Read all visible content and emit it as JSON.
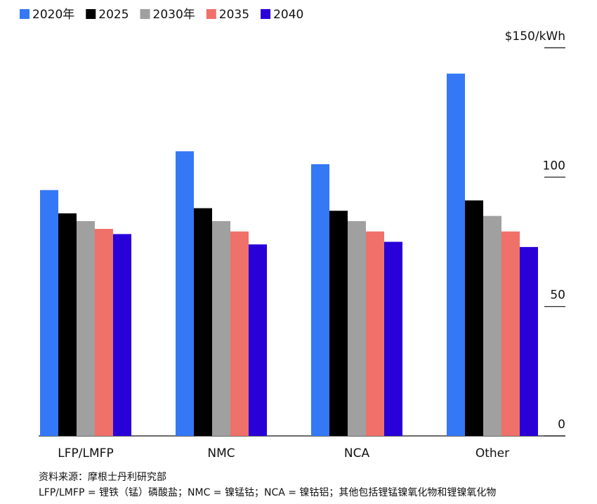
{
  "chart_data": {
    "type": "bar",
    "categories": [
      "LFP/LMFP",
      "NMC",
      "NCA",
      "Other"
    ],
    "series": [
      {
        "name": "2020年",
        "color": "#3478f6",
        "values": [
          95,
          110,
          105,
          140
        ]
      },
      {
        "name": "2025",
        "color": "#000000",
        "values": [
          86,
          88,
          87,
          91
        ]
      },
      {
        "name": "2030年",
        "color": "#a0a0a0",
        "values": [
          83,
          83,
          83,
          85
        ]
      },
      {
        "name": "2035",
        "color": "#f0706a",
        "values": [
          80,
          79,
          79,
          79
        ]
      },
      {
        "name": "2040",
        "color": "#2a00d8",
        "values": [
          78,
          74,
          75,
          73
        ]
      }
    ],
    "ylim": [
      0,
      150
    ],
    "yticks": [
      0,
      50,
      100,
      {
        "value": 150,
        "label": "$150/kWh"
      }
    ],
    "notes": [
      "资料来源：摩根士丹利研究部",
      "LFP/LMFP = 锂铁（锰）磷酸盐；NMC = 镍锰钴；NCA = 镍钴铝；其他包括锂锰镍氧化物和锂镍氧化物"
    ]
  }
}
